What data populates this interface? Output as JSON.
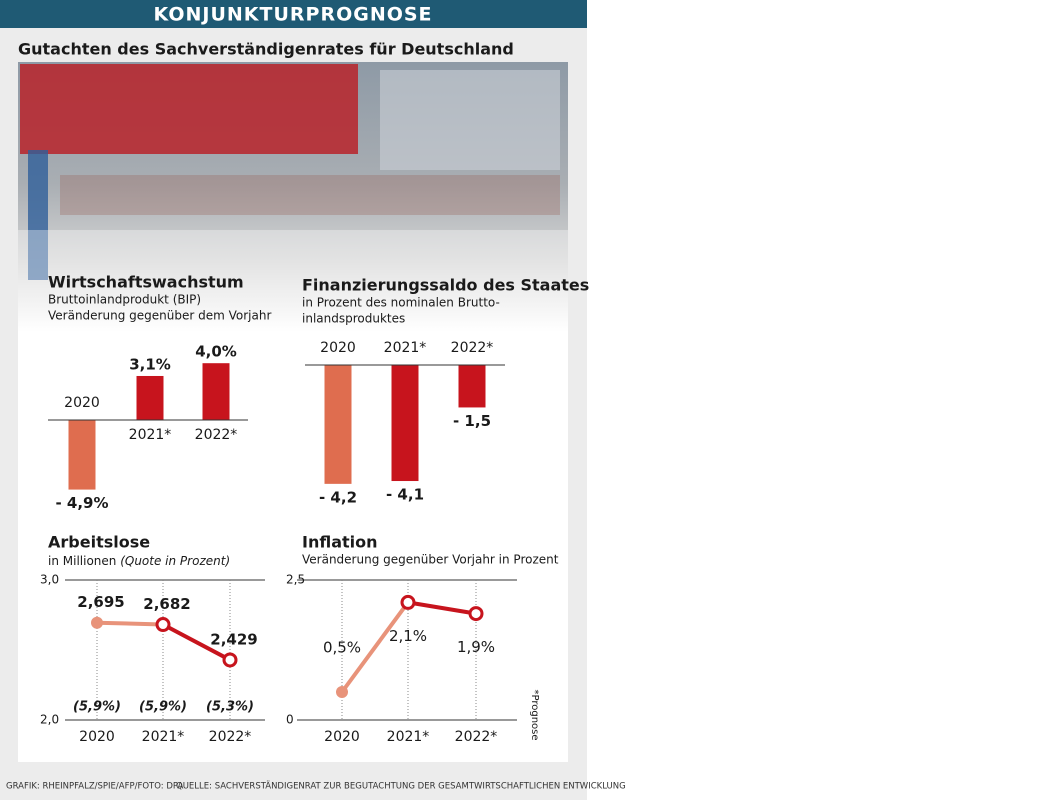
{
  "header": {
    "banner": "KONJUNKTURPROGNOSE",
    "title": "Gutachten des Sachverständigenrates für Deutschland"
  },
  "chart_data": [
    {
      "type": "bar",
      "title": "Wirtschaftswachstum",
      "subtitle": [
        "Bruttoinlandprodukt (BIP)",
        "Veränderung gegenüber dem Vorjahr"
      ],
      "categories": [
        "2020",
        "2021*",
        "2022*"
      ],
      "values": [
        -4.9,
        3.1,
        4.0
      ],
      "value_labels": [
        "- 4,9%",
        "3,1%",
        "4,0%"
      ],
      "colors": [
        "#df6d4f",
        "#c7141d",
        "#c7141d"
      ]
    },
    {
      "type": "bar",
      "title": "Finanzierungssaldo des Staates",
      "subtitle": [
        "in Prozent des nominalen Brutto-",
        "inlandsproduktes"
      ],
      "categories": [
        "2020",
        "2021*",
        "2022*"
      ],
      "values": [
        -4.2,
        -4.1,
        -1.5
      ],
      "value_labels": [
        "- 4,2",
        "- 4,1",
        "- 1,5"
      ],
      "colors": [
        "#df6d4f",
        "#c7141d",
        "#c7141d"
      ]
    },
    {
      "type": "line",
      "title": "Arbeitslose",
      "subtitle": [
        "in Millionen ",
        "(Quote in Prozent)"
      ],
      "categories": [
        "2020",
        "2021*",
        "2022*"
      ],
      "values": [
        2.695,
        2.682,
        2.429
      ],
      "value_labels": [
        "2,695",
        "2,682",
        "2,429"
      ],
      "quota_labels": [
        "(5,9%)",
        "(5,9%)",
        "(5,3%)"
      ],
      "ylim": [
        2.0,
        3.0
      ],
      "yticks": [
        {
          "value": 2.0,
          "label": "2,0"
        },
        {
          "value": 3.0,
          "label": "3,0"
        }
      ],
      "colors": [
        "#e8937a",
        "#c7141d",
        "#c7141d"
      ]
    },
    {
      "type": "line",
      "title": "Inflation",
      "subtitle": [
        "Veränderung gegenüber Vorjahr in Prozent"
      ],
      "categories": [
        "2020",
        "2021*",
        "2022*"
      ],
      "values": [
        0.5,
        2.1,
        1.9
      ],
      "value_labels": [
        "0,5%",
        "2,1%",
        "1,9%"
      ],
      "ylim": [
        0,
        2.5
      ],
      "yticks": [
        0,
        {
          "value": 2.5,
          "label": "2,5"
        }
      ],
      "colors": [
        "#e8937a",
        "#c7141d",
        "#c7141d"
      ]
    }
  ],
  "footer": {
    "note": "*Prognose",
    "credit": "GRAFIK: RHEINPFALZ/SPIE/AFP/FOTO: DPA",
    "source": "QUELLE: SACHVERSTÄNDIGENRAT ZUR BEGUTACHTUNG DER GESAMTWIRTSCHAFTLICHEN ENTWICKLUNG"
  }
}
